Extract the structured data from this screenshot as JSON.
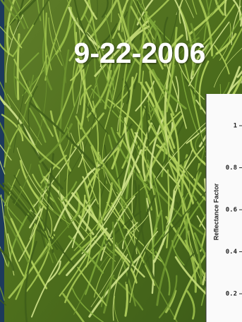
{
  "photo": {
    "date": "9-22-2006"
  },
  "inset_chart": {
    "y_label": "Reflectance Factor",
    "yticks": [
      1,
      0.8,
      0.6,
      0.4,
      0.2
    ]
  }
}
